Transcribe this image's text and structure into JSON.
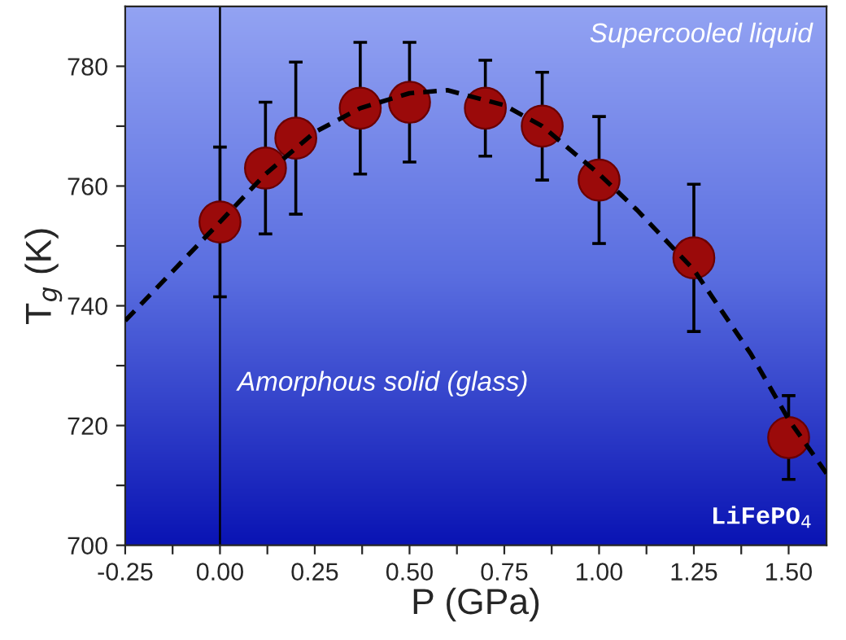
{
  "chart_data": {
    "type": "scatter",
    "xlabel": "P (GPa)",
    "ylabel": "T$_{g}$ (K)",
    "xlim": [
      -0.25,
      1.6
    ],
    "ylim": [
      700,
      790
    ],
    "xticks": [
      {
        "value": -0.25,
        "label": "-0.25"
      },
      {
        "value": -0.125,
        "label": null
      },
      {
        "value": 0,
        "label": "0.00"
      },
      {
        "value": 0.125,
        "label": null
      },
      {
        "value": 0.25,
        "label": "0.25"
      },
      {
        "value": 0.375,
        "label": null
      },
      {
        "value": 0.5,
        "label": "0.50"
      },
      {
        "value": 0.625,
        "label": null
      },
      {
        "value": 0.75,
        "label": "0.75"
      },
      {
        "value": 0.875,
        "label": null
      },
      {
        "value": 1,
        "label": "1.00"
      },
      {
        "value": 1.125,
        "label": null
      },
      {
        "value": 1.25,
        "label": "1.25"
      },
      {
        "value": 1.375,
        "label": null
      },
      {
        "value": 1.5,
        "label": "1.50"
      }
    ],
    "yticks": [
      700,
      {
        "value": 710,
        "label": null
      },
      720,
      {
        "value": 730,
        "label": null
      },
      740,
      {
        "value": 750,
        "label": null
      },
      760,
      {
        "value": 770,
        "label": null
      },
      780
    ],
    "grid": false,
    "marker": "circle",
    "series": [
      {
        "color": "#9b0a0a",
        "x": [
          0.0,
          0.12,
          0.2,
          0.37,
          0.5,
          0.7,
          0.85,
          1.0,
          1.25,
          1.5
        ],
        "values": [
          754,
          763,
          768,
          773,
          774,
          773,
          770,
          761,
          748,
          718
        ],
        "errors": [
          12.5,
          11,
          12.7,
          11,
          10,
          8,
          9,
          10.6,
          12.3,
          7
        ]
      },
      {
        "type": "line",
        "color": "#000000",
        "line_style": "dashed",
        "marker": "none",
        "x": [
          -0.25,
          0.0,
          0.12,
          0.25,
          0.37,
          0.5,
          0.6,
          0.75,
          0.85,
          1.0,
          1.1,
          1.25,
          1.4,
          1.5,
          1.6
        ],
        "values": [
          737.5,
          754,
          762,
          769,
          773,
          775.5,
          776,
          773.5,
          770,
          762,
          756,
          746,
          732,
          721,
          712
        ]
      }
    ],
    "ref_lines": [
      {
        "axis": "x",
        "value": 0,
        "color": "#000000",
        "line_style": "solid"
      }
    ],
    "annotations": [
      "Supercooled liquid",
      "Amorphous solid (glass)",
      "LiFePO$_{4}$"
    ]
  }
}
